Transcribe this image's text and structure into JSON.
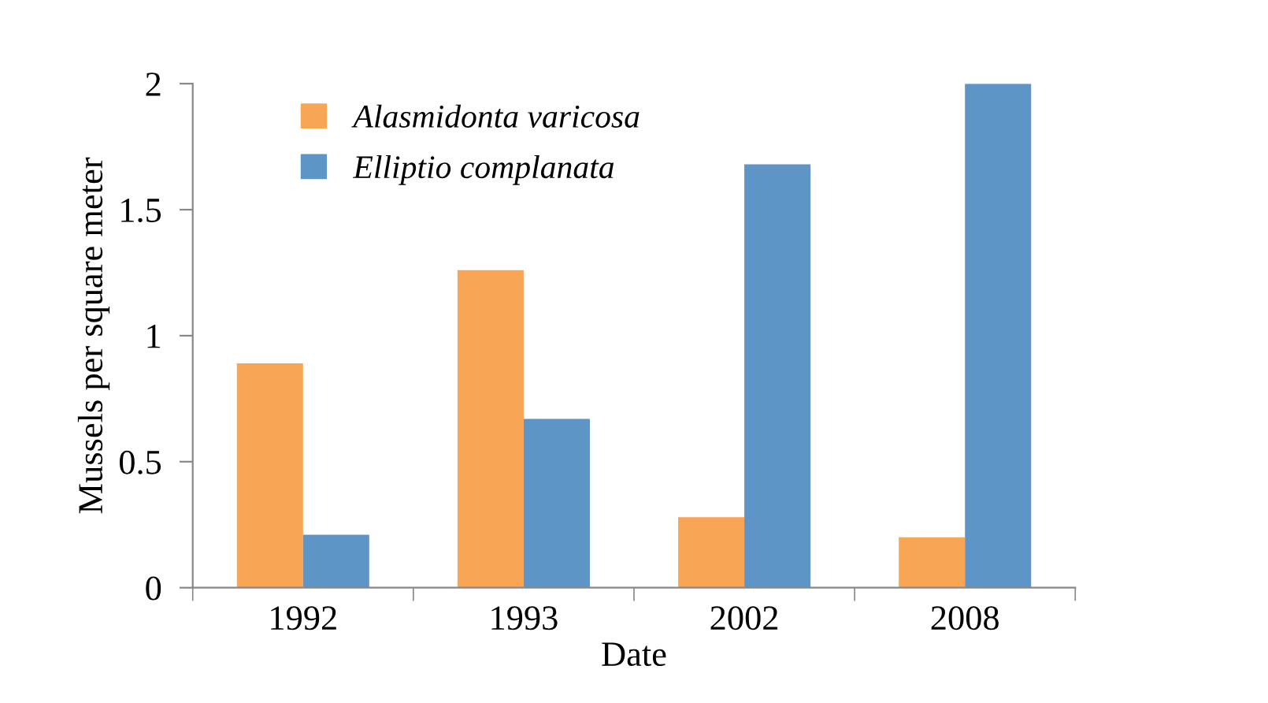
{
  "chart_data": {
    "type": "bar",
    "xlabel": "Date",
    "ylabel": "Mussels per square meter",
    "categories": [
      "1992",
      "1993",
      "2002",
      "2008"
    ],
    "series": [
      {
        "name": "Alasmidonta varicosa",
        "color": "#f8a656",
        "values": [
          0.89,
          1.26,
          0.28,
          0.2
        ]
      },
      {
        "name": "Elliptio complanata",
        "color": "#5f95c6",
        "values": [
          0.21,
          0.67,
          1.68,
          2.0
        ]
      }
    ],
    "ylim": [
      0,
      2
    ],
    "yticks": [
      0,
      0.5,
      1,
      1.5,
      2
    ],
    "grid": false,
    "legend": "top left"
  }
}
